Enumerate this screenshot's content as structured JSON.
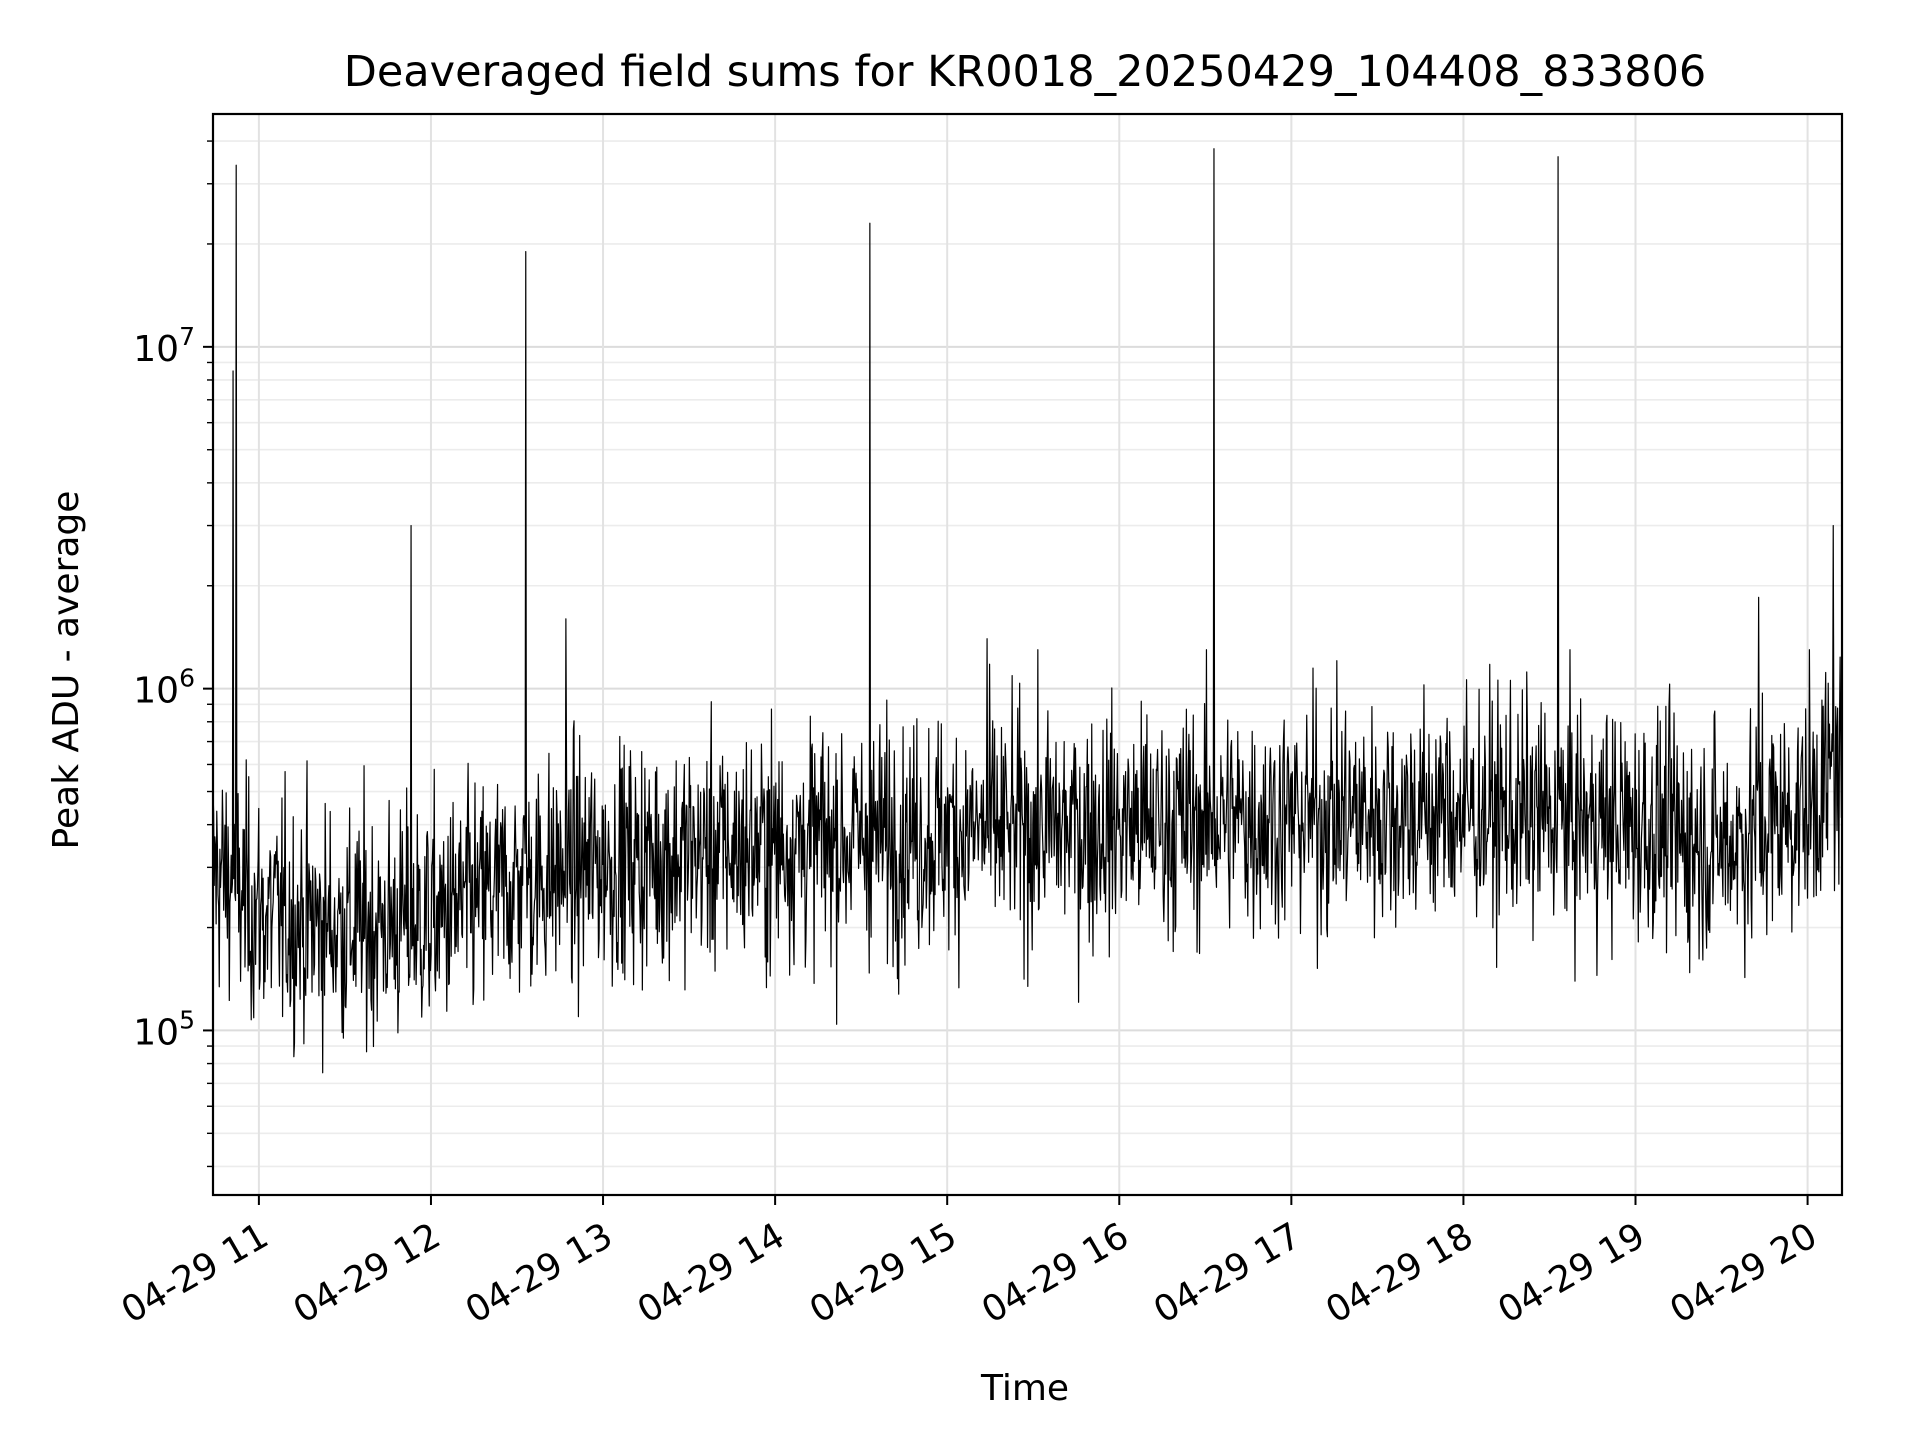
{
  "chart_data": {
    "type": "line",
    "title": "Deaveraged field sums for KR0018_20250429_104408_833806",
    "xlabel": "Time",
    "ylabel": "Peak ADU - average",
    "yscale": "log",
    "ylim": [
      33000,
      48000000
    ],
    "xlim": [
      "2025-04-29 10:44",
      "2025-04-29 20:12"
    ],
    "grid": true,
    "line_color": "#000000",
    "x_ticks": [
      "04-29 11",
      "04-29 12",
      "04-29 13",
      "04-29 14",
      "04-29 15",
      "04-29 16",
      "04-29 17",
      "04-29 18",
      "04-29 19",
      "04-29 20"
    ],
    "y_ticks": [
      {
        "value": 100000,
        "base": "10",
        "exp": "5"
      },
      {
        "value": 1000000,
        "base": "10",
        "exp": "6"
      },
      {
        "value": 10000000,
        "base": "10",
        "exp": "7"
      }
    ],
    "series": [
      {
        "baseline_trend": [
          {
            "x": "2025-04-29 10:44",
            "y": 300000
          },
          {
            "x": "2025-04-29 11:00",
            "y": 220000
          },
          {
            "x": "2025-04-29 11:30",
            "y": 200000
          },
          {
            "x": "2025-04-29 12:00",
            "y": 210000
          },
          {
            "x": "2025-04-29 12:30",
            "y": 270000
          },
          {
            "x": "2025-04-29 13:00",
            "y": 310000
          },
          {
            "x": "2025-04-29 14:00",
            "y": 350000
          },
          {
            "x": "2025-04-29 15:00",
            "y": 380000
          },
          {
            "x": "2025-04-29 16:00",
            "y": 400000
          },
          {
            "x": "2025-04-29 17:00",
            "y": 420000
          },
          {
            "x": "2025-04-29 18:00",
            "y": 440000
          },
          {
            "x": "2025-04-29 19:00",
            "y": 400000
          },
          {
            "x": "2025-04-29 19:30",
            "y": 350000
          },
          {
            "x": "2025-04-29 20:00",
            "y": 450000
          },
          {
            "x": "2025-04-29 20:12",
            "y": 600000
          }
        ],
        "spikes": [
          {
            "x": "2025-04-29 10:51",
            "y": 8500000
          },
          {
            "x": "2025-04-29 10:52",
            "y": 34000000
          },
          {
            "x": "2025-04-29 11:53",
            "y": 3000000
          },
          {
            "x": "2025-04-29 12:33",
            "y": 19000000
          },
          {
            "x": "2025-04-29 12:47",
            "y": 1600000
          },
          {
            "x": "2025-04-29 14:33",
            "y": 23000000
          },
          {
            "x": "2025-04-29 15:14",
            "y": 1400000
          },
          {
            "x": "2025-04-29 16:33",
            "y": 38000000
          },
          {
            "x": "2025-04-29 18:33",
            "y": 36000000
          },
          {
            "x": "2025-04-29 19:43",
            "y": 1850000
          },
          {
            "x": "2025-04-29 20:09",
            "y": 3000000
          }
        ]
      }
    ]
  }
}
